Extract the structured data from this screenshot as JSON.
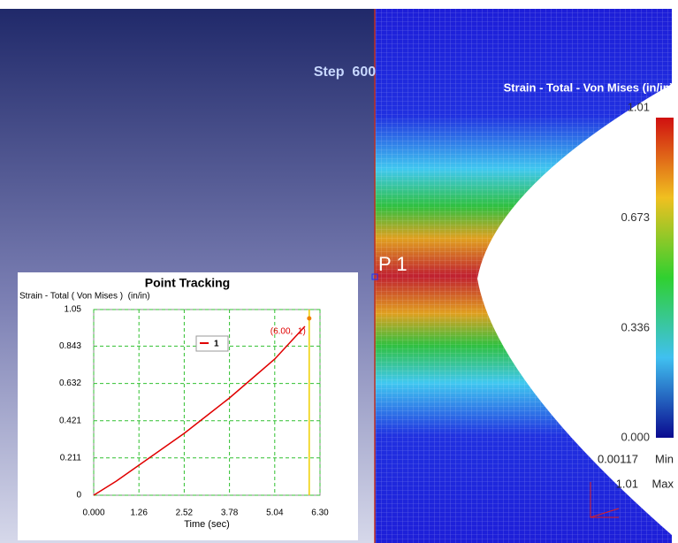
{
  "viewport": {
    "step_label": "Step  600",
    "point_label": "P 1"
  },
  "contour_legend": {
    "title": "Strain - Total - Von Mises (in/in)",
    "ticks": [
      {
        "value": 1.01,
        "label": "1.01"
      },
      0.673,
      0.336,
      {
        "value": 0,
        "label": "0.000"
      }
    ],
    "min_value": 0.00117,
    "min_label": "Min",
    "max_value": 1.01,
    "max_label": "Max"
  },
  "chart_data": {
    "type": "line",
    "title": "Point Tracking",
    "y_label": "Strain - Total ( Von Mises )  (in/in)",
    "x_label": "Time (sec)",
    "xlim": [
      0,
      6.3
    ],
    "ylim": [
      0,
      1.05
    ],
    "xticks": [
      {
        "value": 0,
        "label": "0.000"
      },
      1.26,
      2.52,
      3.78,
      5.04,
      {
        "value": 6.3,
        "label": "6.30"
      }
    ],
    "yticks": [
      0,
      0.211,
      0.421,
      0.632,
      0.843,
      1.05
    ],
    "grid": true,
    "series": [
      {
        "name": "1",
        "color": "#e00000",
        "x": [
          0,
          0.63,
          1.26,
          1.89,
          2.52,
          3.15,
          3.78,
          4.41,
          5.04,
          5.88
        ],
        "values": [
          0,
          0.08,
          0.17,
          0.26,
          0.35,
          0.45,
          0.55,
          0.66,
          0.77,
          0.955
        ]
      }
    ],
    "cursor": {
      "x": 6.0,
      "y": 1,
      "label": "(6.00,  1)"
    }
  }
}
